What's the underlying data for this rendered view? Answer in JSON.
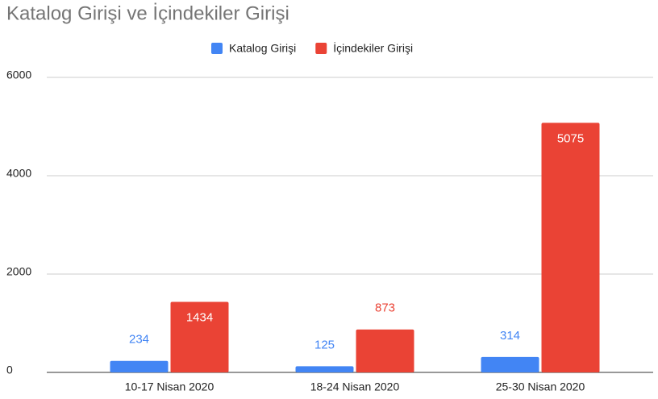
{
  "chart_data": {
    "type": "bar",
    "title": "Katalog Girişi ve İçindekiler Girişi",
    "categories": [
      "10-17 Nisan 2020",
      "18-24 Nisan 2020",
      "25-30 Nisan 2020"
    ],
    "series": [
      {
        "name": "Katalog Girişi",
        "color": "#4285f4",
        "values": [
          234,
          125,
          314
        ]
      },
      {
        "name": "İçindekiler Girişi",
        "color": "#ea4335",
        "values": [
          1434,
          873,
          5075
        ]
      }
    ],
    "ylim": [
      0,
      6000
    ],
    "yticks": [
      0,
      2000,
      4000,
      6000
    ],
    "grid": true,
    "legend": "top"
  }
}
